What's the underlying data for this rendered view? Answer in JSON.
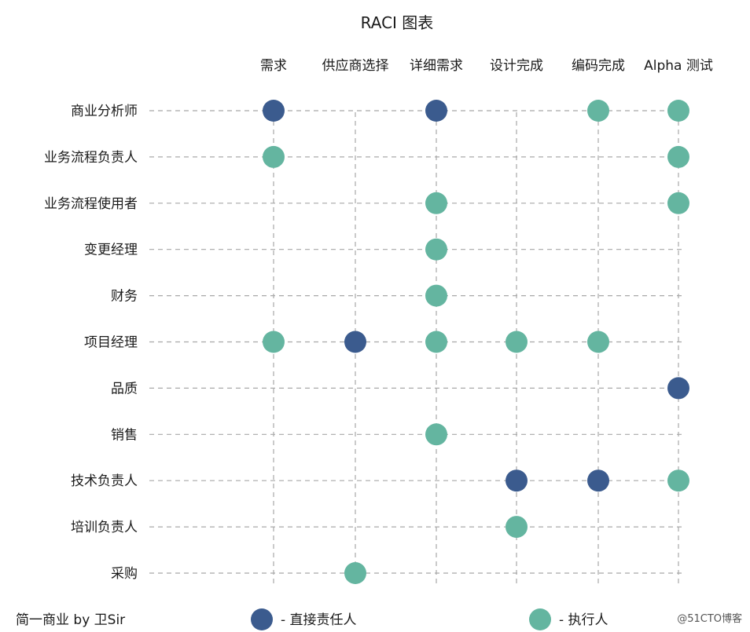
{
  "chart_data": {
    "type": "scatter",
    "title": "RACI 图表",
    "columns": [
      "需求",
      "供应商选择",
      "详细需求",
      "设计完成",
      "编码完成",
      "Alpha 测试"
    ],
    "rows": [
      "商业分析师",
      "业务流程负责人",
      "业务流程使用者",
      "变更经理",
      "财务",
      "项目经理",
      "品质",
      "销售",
      "技术负责人",
      "培训负责人",
      "采购"
    ],
    "assignments": [
      {
        "row": "商业分析师",
        "column": "需求",
        "role": "直接责任人"
      },
      {
        "row": "商业分析师",
        "column": "详细需求",
        "role": "直接责任人"
      },
      {
        "row": "商业分析师",
        "column": "编码完成",
        "role": "执行人"
      },
      {
        "row": "商业分析师",
        "column": "Alpha 测试",
        "role": "执行人"
      },
      {
        "row": "业务流程负责人",
        "column": "需求",
        "role": "执行人"
      },
      {
        "row": "业务流程负责人",
        "column": "Alpha 测试",
        "role": "执行人"
      },
      {
        "row": "业务流程使用者",
        "column": "详细需求",
        "role": "执行人"
      },
      {
        "row": "业务流程使用者",
        "column": "Alpha 测试",
        "role": "执行人"
      },
      {
        "row": "变更经理",
        "column": "详细需求",
        "role": "执行人"
      },
      {
        "row": "财务",
        "column": "详细需求",
        "role": "执行人"
      },
      {
        "row": "项目经理",
        "column": "需求",
        "role": "执行人"
      },
      {
        "row": "项目经理",
        "column": "供应商选择",
        "role": "直接责任人"
      },
      {
        "row": "项目经理",
        "column": "详细需求",
        "role": "执行人"
      },
      {
        "row": "项目经理",
        "column": "设计完成",
        "role": "执行人"
      },
      {
        "row": "项目经理",
        "column": "编码完成",
        "role": "执行人"
      },
      {
        "row": "品质",
        "column": "Alpha 测试",
        "role": "直接责任人"
      },
      {
        "row": "销售",
        "column": "详细需求",
        "role": "执行人"
      },
      {
        "row": "技术负责人",
        "column": "设计完成",
        "role": "直接责任人"
      },
      {
        "row": "技术负责人",
        "column": "编码完成",
        "role": "直接责任人"
      },
      {
        "row": "技术负责人",
        "column": "Alpha 测试",
        "role": "执行人"
      },
      {
        "row": "培训负责人",
        "column": "设计完成",
        "role": "执行人"
      },
      {
        "row": "采购",
        "column": "供应商选择",
        "role": "执行人"
      }
    ],
    "legend": [
      {
        "role": "直接责任人",
        "label": "-  直接责任人",
        "color": "#3b5b8e"
      },
      {
        "role": "执行人",
        "label": "-  执行人",
        "color": "#64b5a0"
      }
    ],
    "legend_position": "bottom",
    "grid": true
  },
  "footer": {
    "credit": "简一商业 by 卫Sir",
    "watermark": "@51CTO博客"
  },
  "colors": {
    "grid": "#a8a8a8",
    "text": "#1a1a1a"
  }
}
